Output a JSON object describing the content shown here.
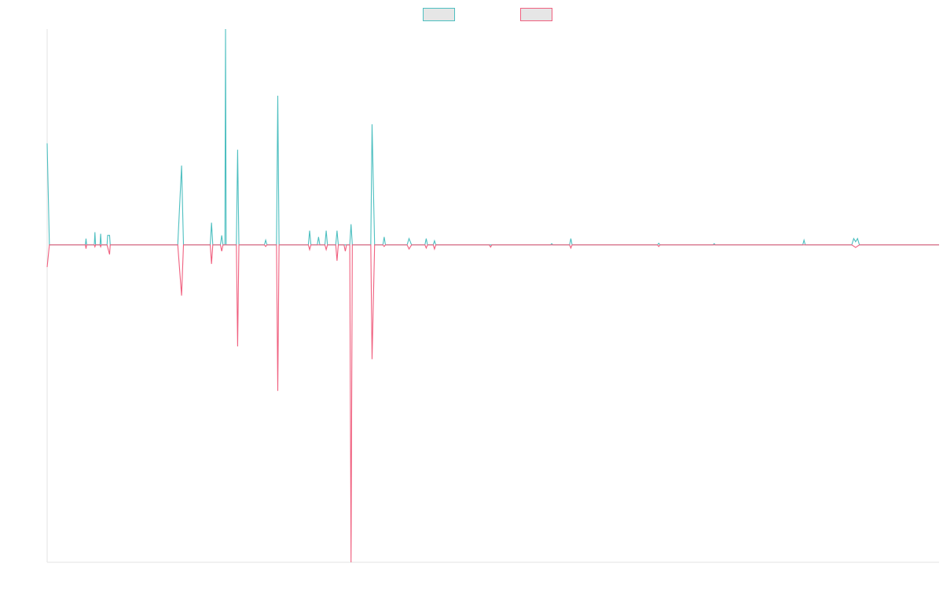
{
  "colors": {
    "series_a": "#4dbfc0",
    "series_b": "#f0607f",
    "swatch_fill": "#e6e6e6",
    "axis": "#e3e3e3",
    "background": "#ffffff"
  },
  "chart_data": {
    "type": "line",
    "title": "",
    "xlabel": "",
    "ylabel": "",
    "grid": false,
    "legend": {
      "placement": "top-center",
      "entries": [
        "",
        ""
      ]
    },
    "xlim": [
      0,
      140
    ],
    "ylim": [
      -100,
      68
    ],
    "series": [
      {
        "color": "#4dbfc0",
        "points": [
          [
            0,
            32
          ],
          [
            0.35,
            0
          ],
          [
            6,
            0
          ],
          [
            6.1,
            2
          ],
          [
            6.2,
            0
          ],
          [
            7.4,
            0
          ],
          [
            7.5,
            4
          ],
          [
            7.6,
            0
          ],
          [
            8.3,
            0
          ],
          [
            8.4,
            3.5
          ],
          [
            8.5,
            0
          ],
          [
            9.4,
            0
          ],
          [
            9.5,
            3
          ],
          [
            9.8,
            3
          ],
          [
            9.9,
            0
          ],
          [
            20.5,
            0
          ],
          [
            21.1,
            25
          ],
          [
            21.4,
            0
          ],
          [
            25.6,
            0
          ],
          [
            25.8,
            7
          ],
          [
            26,
            0
          ],
          [
            27.2,
            0
          ],
          [
            27.4,
            3
          ],
          [
            27.6,
            0
          ],
          [
            27.9,
            0
          ],
          [
            28,
            68
          ],
          [
            28.1,
            0
          ],
          [
            29.7,
            0
          ],
          [
            29.9,
            30
          ],
          [
            30.1,
            0
          ],
          [
            34.1,
            0
          ],
          [
            34.3,
            1.5
          ],
          [
            34.5,
            0
          ],
          [
            36,
            0
          ],
          [
            36.2,
            47
          ],
          [
            36.4,
            0
          ],
          [
            41,
            0
          ],
          [
            41.2,
            4.5
          ],
          [
            41.4,
            0
          ],
          [
            42.4,
            0
          ],
          [
            42.6,
            2.5
          ],
          [
            42.8,
            0
          ],
          [
            43.6,
            0
          ],
          [
            43.8,
            4.5
          ],
          [
            44,
            0
          ],
          [
            45.3,
            0
          ],
          [
            45.5,
            4.5
          ],
          [
            45.7,
            0
          ],
          [
            47.5,
            0
          ],
          [
            47.7,
            6.5
          ],
          [
            47.9,
            0
          ],
          [
            50.8,
            0
          ],
          [
            51,
            38
          ],
          [
            51.4,
            0
          ],
          [
            52.7,
            0
          ],
          [
            52.9,
            2.5
          ],
          [
            53.1,
            0
          ],
          [
            56.5,
            0
          ],
          [
            56.8,
            2
          ],
          [
            57.2,
            0
          ],
          [
            59.3,
            0
          ],
          [
            59.5,
            2
          ],
          [
            59.7,
            0
          ],
          [
            60.6,
            0
          ],
          [
            60.8,
            1.3
          ],
          [
            61,
            0
          ],
          [
            79,
            0
          ],
          [
            79.2,
            0.4
          ],
          [
            79.4,
            0
          ],
          [
            82,
            0
          ],
          [
            82.2,
            2
          ],
          [
            82.4,
            0
          ],
          [
            95.8,
            0
          ],
          [
            96,
            0.5
          ],
          [
            96.2,
            0
          ],
          [
            104.5,
            0
          ],
          [
            104.7,
            0.4
          ],
          [
            104.9,
            0
          ],
          [
            118.6,
            0
          ],
          [
            118.8,
            1.5
          ],
          [
            119,
            0
          ],
          [
            126.3,
            0
          ],
          [
            126.6,
            2
          ],
          [
            126.9,
            1
          ],
          [
            127.2,
            2
          ],
          [
            127.5,
            0
          ],
          [
            140,
            0
          ]
        ]
      },
      {
        "color": "#f0607f",
        "points": [
          [
            0,
            -7
          ],
          [
            0.35,
            0
          ],
          [
            6,
            0
          ],
          [
            6.1,
            -1.2
          ],
          [
            6.2,
            0
          ],
          [
            7.4,
            0
          ],
          [
            7.5,
            -0.6
          ],
          [
            7.6,
            0
          ],
          [
            8.3,
            0
          ],
          [
            8.4,
            -0.6
          ],
          [
            8.5,
            0
          ],
          [
            9.4,
            0
          ],
          [
            9.8,
            -3
          ],
          [
            9.9,
            0
          ],
          [
            20.5,
            0
          ],
          [
            21.1,
            -16
          ],
          [
            21.4,
            0
          ],
          [
            25.6,
            0
          ],
          [
            25.8,
            -6
          ],
          [
            26,
            0
          ],
          [
            27.2,
            0
          ],
          [
            27.4,
            -2
          ],
          [
            27.6,
            0
          ],
          [
            29.7,
            0
          ],
          [
            29.9,
            -32
          ],
          [
            30.1,
            0
          ],
          [
            34.1,
            0
          ],
          [
            34.3,
            -0.5
          ],
          [
            34.5,
            0
          ],
          [
            36,
            0
          ],
          [
            36.2,
            -46
          ],
          [
            36.4,
            0
          ],
          [
            41,
            0
          ],
          [
            41.2,
            -1.5
          ],
          [
            41.4,
            0
          ],
          [
            43.6,
            0
          ],
          [
            43.8,
            -1.5
          ],
          [
            44,
            0
          ],
          [
            45.3,
            0
          ],
          [
            45.5,
            -5
          ],
          [
            45.7,
            0
          ],
          [
            46.6,
            0
          ],
          [
            46.8,
            -2
          ],
          [
            47,
            0
          ],
          [
            47.5,
            0
          ],
          [
            47.7,
            -100
          ],
          [
            47.9,
            0
          ],
          [
            50.8,
            0
          ],
          [
            51,
            -36
          ],
          [
            51.4,
            0
          ],
          [
            52.7,
            0
          ],
          [
            52.9,
            -0.5
          ],
          [
            53.1,
            0
          ],
          [
            56.5,
            0
          ],
          [
            56.8,
            -1.3
          ],
          [
            57.2,
            0
          ],
          [
            59.3,
            0
          ],
          [
            59.5,
            -1
          ],
          [
            59.7,
            0
          ],
          [
            60.6,
            0
          ],
          [
            60.8,
            -1.3
          ],
          [
            61,
            0
          ],
          [
            69.4,
            0
          ],
          [
            69.6,
            -0.7
          ],
          [
            69.8,
            0
          ],
          [
            82,
            0
          ],
          [
            82.2,
            -1
          ],
          [
            82.4,
            0
          ],
          [
            95.8,
            0
          ],
          [
            96,
            -0.5
          ],
          [
            96.2,
            0
          ],
          [
            126.3,
            0
          ],
          [
            126.9,
            -0.8
          ],
          [
            127.5,
            0
          ],
          [
            140,
            0
          ]
        ]
      }
    ]
  }
}
